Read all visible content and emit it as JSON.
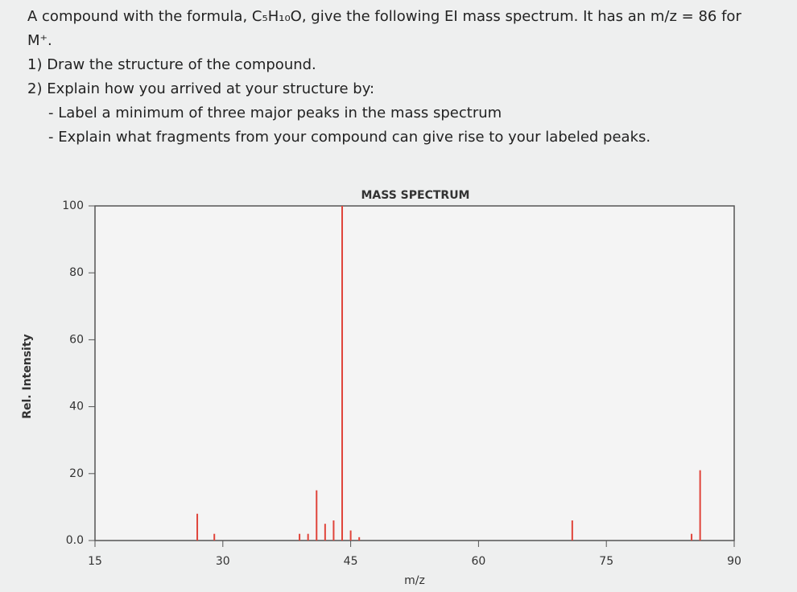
{
  "question": {
    "intro": "A compound with the formula, C₅H₁₀O, give the following EI mass spectrum. It has an m/z = 86 for",
    "intro_end": "M⁺.",
    "items": [
      "1) Draw the structure of the compound.",
      "2) Explain how you arrived at your structure by:"
    ],
    "subitems": [
      "- Label a minimum of three major peaks in the mass spectrum",
      "- Explain what fragments from your compound can give rise to your labeled peaks."
    ]
  },
  "chart_data": {
    "type": "stem",
    "title": "MASS SPECTRUM",
    "xlabel": "m/z",
    "ylabel": "Rel. Intensity",
    "x": [
      27,
      29,
      39,
      40,
      41,
      42,
      43,
      44,
      45,
      46,
      71,
      85,
      86
    ],
    "values": [
      8,
      2,
      2,
      2,
      15,
      5,
      6,
      100,
      3,
      1,
      6,
      2,
      21
    ],
    "color": "#e0443a",
    "xlim": [
      15,
      90
    ],
    "xticks": [
      15,
      30,
      45,
      60,
      75,
      90
    ],
    "ylim": [
      0,
      100
    ],
    "yticks": [
      {
        "value": 0,
        "label": "0.0"
      },
      20,
      40,
      60,
      80,
      100
    ]
  }
}
